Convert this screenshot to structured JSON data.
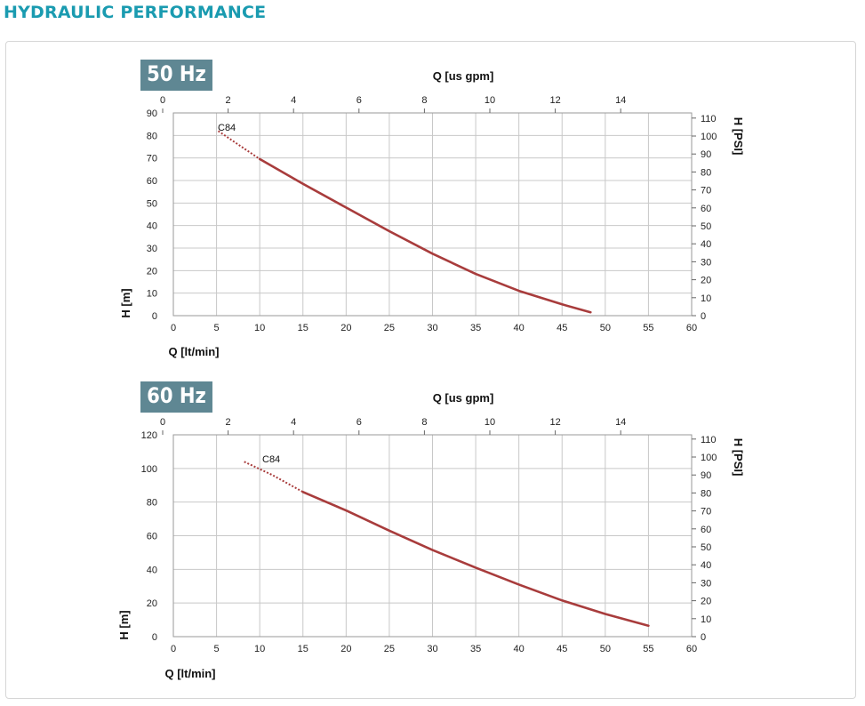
{
  "page": {
    "title": "HYDRAULIC PERFORMANCE"
  },
  "colors": {
    "title": "#1a9bb0",
    "badge": "#5f8793",
    "curve": "#a83c3c",
    "grid": "#c8c8c8"
  },
  "chart_data": [
    {
      "type": "line",
      "badge": "50 Hz",
      "xlabel": "Q [lt/min]",
      "ylabel": "H [m]",
      "x2label": "Q [us gpm]",
      "y2label": "H [PSI]",
      "xlim": [
        0,
        60
      ],
      "ylim": [
        0,
        90
      ],
      "x_ticks": [
        0,
        5,
        10,
        15,
        20,
        25,
        30,
        35,
        40,
        45,
        50,
        55,
        60
      ],
      "y_ticks": [
        0,
        10,
        20,
        30,
        40,
        50,
        60,
        70,
        80,
        90
      ],
      "x2_ticks": [
        0,
        2,
        4,
        6,
        8,
        10,
        12,
        14
      ],
      "y2_ticks": [
        0,
        10,
        20,
        30,
        40,
        50,
        60,
        70,
        80,
        90,
        100,
        110
      ],
      "grid": true,
      "series": [
        {
          "name": "C84",
          "dotted": [
            [
              5.2,
              82
            ],
            [
              7.5,
              76
            ],
            [
              10.0,
              69.5
            ]
          ],
          "solid": [
            [
              10.0,
              69.5
            ],
            [
              15,
              58.5
            ],
            [
              20,
              48
            ],
            [
              25,
              37.5
            ],
            [
              30,
              27.5
            ],
            [
              35,
              18.5
            ],
            [
              40,
              11
            ],
            [
              45,
              5
            ],
            [
              48.3,
              1.5
            ]
          ]
        }
      ]
    },
    {
      "type": "line",
      "badge": "60 Hz",
      "xlabel": "Q [lt/min]",
      "ylabel": "H [m]",
      "x2label": "Q [us gpm]",
      "y2label": "H [PSI]",
      "xlim": [
        0,
        60
      ],
      "ylim": [
        0,
        120
      ],
      "x_ticks": [
        0,
        5,
        10,
        15,
        20,
        25,
        30,
        35,
        40,
        45,
        50,
        55,
        60
      ],
      "y_ticks": [
        0,
        20,
        40,
        60,
        80,
        100,
        120
      ],
      "x2_ticks": [
        0,
        2,
        4,
        6,
        8,
        10,
        12,
        14
      ],
      "y2_ticks": [
        0,
        10,
        20,
        30,
        40,
        50,
        60,
        70,
        80,
        90,
        100,
        110
      ],
      "grid": true,
      "series": [
        {
          "name": "C84",
          "dotted": [
            [
              8.2,
              104
            ],
            [
              11.5,
              96
            ],
            [
              15.0,
              86
            ]
          ],
          "solid": [
            [
              15.0,
              86
            ],
            [
              20,
              75
            ],
            [
              25,
              63
            ],
            [
              30,
              51.5
            ],
            [
              35,
              41
            ],
            [
              40,
              31
            ],
            [
              45,
              21.5
            ],
            [
              50,
              13.5
            ],
            [
              55,
              6.5
            ]
          ]
        }
      ]
    }
  ]
}
